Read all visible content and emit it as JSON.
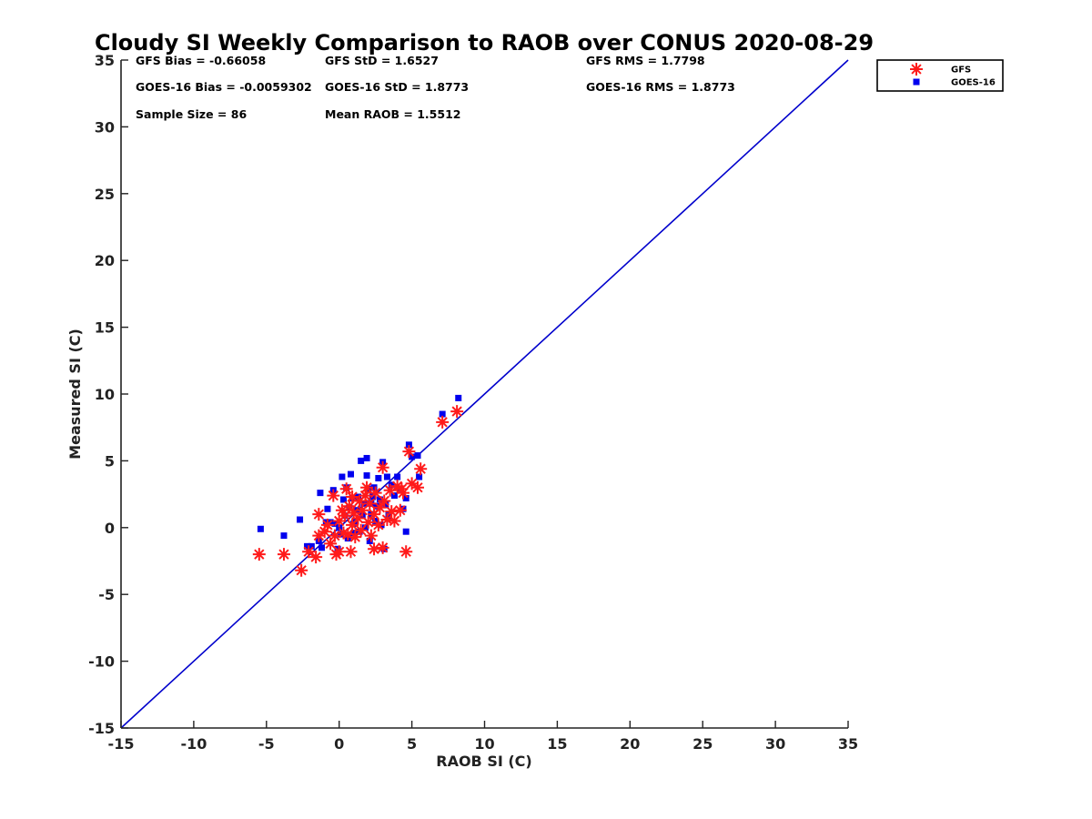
{
  "chart_data": {
    "type": "scatter",
    "title": "Cloudy SI Weekly Comparison to RAOB over CONUS 2020-08-29",
    "xlabel": "RAOB SI (C)",
    "ylabel": "Measured SI (C)",
    "xlim": [
      -15,
      35
    ],
    "ylim": [
      -15,
      35
    ],
    "xticks": [
      -15,
      -10,
      -5,
      0,
      5,
      10,
      15,
      20,
      25,
      30,
      35
    ],
    "yticks": [
      -15,
      -10,
      -5,
      0,
      5,
      10,
      15,
      20,
      25,
      30,
      35
    ],
    "grid": false,
    "legend_position": "outside-top-right",
    "reference_line": {
      "from": [
        -15,
        -15
      ],
      "to": [
        35,
        35
      ],
      "color": "#0000cc"
    },
    "stats": [
      {
        "text": "GFS Bias = -0.66058",
        "row": 0,
        "col": 0
      },
      {
        "text": "GFS StD = 1.6527",
        "row": 0,
        "col": 1
      },
      {
        "text": "GFS RMS = 1.7798",
        "row": 0,
        "col": 2
      },
      {
        "text": "GOES-16 Bias = -0.0059302",
        "row": 1,
        "col": 0
      },
      {
        "text": "GOES-16 StD = 1.8773",
        "row": 1,
        "col": 1
      },
      {
        "text": "GOES-16 RMS = 1.8773",
        "row": 1,
        "col": 2
      },
      {
        "text": "Sample Size = 86",
        "row": 2,
        "col": 0
      },
      {
        "text": "Mean RAOB = 1.5512",
        "row": 2,
        "col": 1
      }
    ],
    "series": [
      {
        "name": "GFS",
        "marker": "asterisk",
        "color": "#ff1a1a",
        "points": [
          [
            -5.5,
            -2.0
          ],
          [
            -3.8,
            -2.0
          ],
          [
            -2.6,
            -3.2
          ],
          [
            -2.1,
            -1.8
          ],
          [
            -1.6,
            -2.2
          ],
          [
            -1.4,
            1.0
          ],
          [
            -1.4,
            -0.6
          ],
          [
            -1.0,
            -0.3
          ],
          [
            -0.8,
            0.2
          ],
          [
            -0.6,
            -1.2
          ],
          [
            -0.4,
            2.4
          ],
          [
            -0.3,
            -0.6
          ],
          [
            -0.2,
            -2.0
          ],
          [
            0.0,
            -1.8
          ],
          [
            0.0,
            0.5
          ],
          [
            0.2,
            1.3
          ],
          [
            0.3,
            -0.4
          ],
          [
            0.4,
            0.9
          ],
          [
            0.5,
            2.9
          ],
          [
            0.6,
            -0.5
          ],
          [
            0.7,
            1.6
          ],
          [
            0.8,
            -1.8
          ],
          [
            0.9,
            0.2
          ],
          [
            1.0,
            1.1
          ],
          [
            1.1,
            -0.7
          ],
          [
            1.3,
            0.7
          ],
          [
            1.4,
            2.0
          ],
          [
            1.5,
            -0.2
          ],
          [
            1.6,
            1.3
          ],
          [
            1.8,
            2.4
          ],
          [
            1.9,
            3.0
          ],
          [
            2.0,
            0.4
          ],
          [
            2.1,
            1.8
          ],
          [
            2.2,
            -0.6
          ],
          [
            2.4,
            1.0
          ],
          [
            2.4,
            -1.6
          ],
          [
            2.5,
            2.6
          ],
          [
            2.7,
            0.2
          ],
          [
            2.8,
            1.5
          ],
          [
            3.0,
            4.5
          ],
          [
            3.0,
            -1.5
          ],
          [
            3.1,
            2.0
          ],
          [
            3.3,
            0.6
          ],
          [
            3.5,
            2.8
          ],
          [
            3.6,
            1.2
          ],
          [
            3.8,
            0.5
          ],
          [
            4.0,
            3.1
          ],
          [
            4.2,
            1.3
          ],
          [
            4.4,
            2.6
          ],
          [
            4.6,
            -1.8
          ],
          [
            4.8,
            5.7
          ],
          [
            5.0,
            3.3
          ],
          [
            5.4,
            3.0
          ],
          [
            5.6,
            4.4
          ],
          [
            7.1,
            7.9
          ],
          [
            8.1,
            8.7
          ],
          [
            4.3,
            2.9
          ],
          [
            0.9,
            2.3
          ]
        ]
      },
      {
        "name": "GOES-16",
        "marker": "square",
        "color": "#0000ee",
        "points": [
          [
            -5.4,
            -0.1
          ],
          [
            -3.8,
            -0.6
          ],
          [
            -2.7,
            0.6
          ],
          [
            -2.2,
            -1.4
          ],
          [
            -1.9,
            -1.4
          ],
          [
            -1.4,
            -1.0
          ],
          [
            -1.3,
            2.6
          ],
          [
            -1.2,
            -1.5
          ],
          [
            -0.9,
            0.4
          ],
          [
            -0.8,
            1.4
          ],
          [
            -0.6,
            0.4
          ],
          [
            -0.4,
            2.8
          ],
          [
            -0.3,
            0.3
          ],
          [
            -0.1,
            -1.6
          ],
          [
            0.0,
            0.0
          ],
          [
            0.1,
            -0.5
          ],
          [
            0.2,
            3.8
          ],
          [
            0.3,
            2.1
          ],
          [
            0.4,
            0.9
          ],
          [
            0.5,
            3.0
          ],
          [
            0.6,
            -0.8
          ],
          [
            0.7,
            1.5
          ],
          [
            0.8,
            4.0
          ],
          [
            0.9,
            2.2
          ],
          [
            1.0,
            -0.4
          ],
          [
            1.1,
            0.5
          ],
          [
            1.2,
            1.3
          ],
          [
            1.3,
            2.3
          ],
          [
            1.4,
            -0.3
          ],
          [
            1.5,
            5.0
          ],
          [
            1.6,
            0.9
          ],
          [
            1.7,
            1.8
          ],
          [
            1.8,
            0.0
          ],
          [
            1.9,
            5.2
          ],
          [
            1.9,
            3.9
          ],
          [
            2.0,
            2.9
          ],
          [
            2.1,
            -1.0
          ],
          [
            2.2,
            1.0
          ],
          [
            2.3,
            2.3
          ],
          [
            2.4,
            3.0
          ],
          [
            2.5,
            0.5
          ],
          [
            2.6,
            1.6
          ],
          [
            2.7,
            3.7
          ],
          [
            2.8,
            2.1
          ],
          [
            2.9,
            0.2
          ],
          [
            3.0,
            4.9
          ],
          [
            3.1,
            -1.6
          ],
          [
            3.2,
            1.7
          ],
          [
            3.3,
            3.8
          ],
          [
            3.4,
            0.9
          ],
          [
            3.6,
            3.2
          ],
          [
            3.8,
            2.4
          ],
          [
            4.0,
            3.8
          ],
          [
            4.2,
            2.9
          ],
          [
            4.4,
            1.4
          ],
          [
            4.6,
            2.2
          ],
          [
            4.6,
            -0.3
          ],
          [
            4.8,
            6.2
          ],
          [
            5.0,
            5.3
          ],
          [
            5.4,
            5.4
          ],
          [
            5.5,
            3.8
          ],
          [
            7.1,
            8.5
          ],
          [
            8.2,
            9.7
          ],
          [
            1.0,
            0.3
          ],
          [
            2.2,
            1.8
          ]
        ]
      }
    ]
  }
}
